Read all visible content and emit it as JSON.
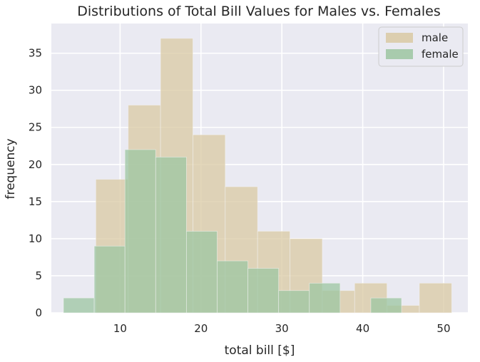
{
  "chart_data": {
    "type": "histogram",
    "title": "Distributions of Total Bill Values for Males vs. Females",
    "xlabel": "total bill [$]",
    "ylabel": "frequency",
    "xlim": [
      1.5,
      53
    ],
    "ylim": [
      0,
      39
    ],
    "xticks": [
      10,
      20,
      30,
      40,
      50
    ],
    "yticks": [
      0,
      5,
      10,
      15,
      20,
      25,
      30,
      35
    ],
    "grid": true,
    "legend_position": "top-right",
    "series": [
      {
        "name": "male",
        "color": "#d9c9a3",
        "bins": [
          {
            "x0": 7.0,
            "x1": 11.0,
            "count": 18
          },
          {
            "x0": 11.0,
            "x1": 15.0,
            "count": 28
          },
          {
            "x0": 15.0,
            "x1": 19.0,
            "count": 37
          },
          {
            "x0": 19.0,
            "x1": 23.0,
            "count": 24
          },
          {
            "x0": 23.0,
            "x1": 27.0,
            "count": 17
          },
          {
            "x0": 27.0,
            "x1": 31.0,
            "count": 11
          },
          {
            "x0": 31.0,
            "x1": 35.0,
            "count": 10
          },
          {
            "x0": 35.0,
            "x1": 39.0,
            "count": 3
          },
          {
            "x0": 39.0,
            "x1": 43.0,
            "count": 4
          },
          {
            "x0": 43.0,
            "x1": 47.0,
            "count": 1
          },
          {
            "x0": 47.0,
            "x1": 51.0,
            "count": 4
          }
        ]
      },
      {
        "name": "female",
        "color": "#9cc5a1",
        "bins": [
          {
            "x0": 3.0,
            "x1": 6.8,
            "count": 2
          },
          {
            "x0": 6.8,
            "x1": 10.6,
            "count": 9
          },
          {
            "x0": 10.6,
            "x1": 14.4,
            "count": 22
          },
          {
            "x0": 14.4,
            "x1": 18.2,
            "count": 21
          },
          {
            "x0": 18.2,
            "x1": 22.0,
            "count": 11
          },
          {
            "x0": 22.0,
            "x1": 25.8,
            "count": 7
          },
          {
            "x0": 25.8,
            "x1": 29.6,
            "count": 6
          },
          {
            "x0": 29.6,
            "x1": 33.4,
            "count": 3
          },
          {
            "x0": 33.4,
            "x1": 37.2,
            "count": 4
          },
          {
            "x0": 37.2,
            "x1": 41.0,
            "count": 0
          },
          {
            "x0": 41.0,
            "x1": 44.8,
            "count": 2
          }
        ]
      }
    ]
  }
}
